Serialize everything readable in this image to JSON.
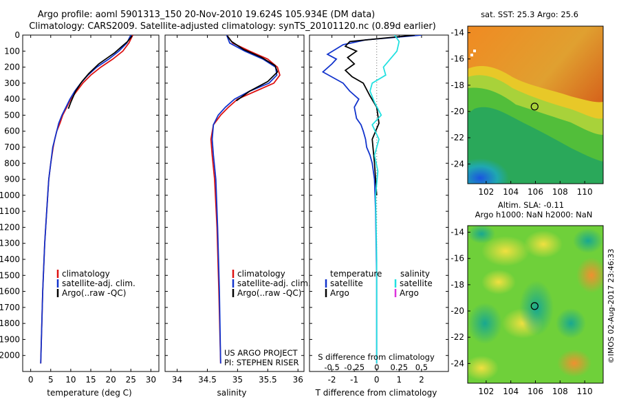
{
  "header": {
    "line1": "Argo profile: aoml 5901313_150 20-Nov-2010 19.624S 105.934E (DM data)",
    "line2": "Climatology: CARS2009. Satellite-adjusted climatology: synTS_20101120.nc (0.89d earlier)"
  },
  "colors": {
    "climatology": "#dd1111",
    "satellite": "#1133cc",
    "argo": "#000000",
    "s_satellite": "#22e0e0",
    "s_argo": "#dd33dd"
  },
  "chart_data": [
    {
      "id": "temperature",
      "type": "line",
      "xlabel": "temperature (deg C)",
      "ylabel": "depth",
      "xlim": [
        -2,
        32
      ],
      "ylim": [
        2100,
        0
      ],
      "xticks": [
        0,
        5,
        10,
        15,
        20,
        25,
        30
      ],
      "yticks": [
        0,
        100,
        200,
        300,
        400,
        500,
        600,
        700,
        800,
        900,
        1000,
        1100,
        1200,
        1300,
        1400,
        1500,
        1600,
        1700,
        1800,
        1900,
        2000
      ],
      "legend": [
        "climatology",
        "satellite-adj. clim.",
        "Argo(..raw -QC)"
      ],
      "series": [
        {
          "name": "climatology",
          "x": [
            25.5,
            24.5,
            23,
            20.5,
            17.5,
            15,
            13,
            11.5,
            10,
            9,
            8,
            7.3,
            6.5,
            6,
            5.6,
            5,
            4.5,
            4,
            3.5,
            3,
            2.5
          ],
          "y": [
            0,
            50,
            100,
            150,
            200,
            250,
            300,
            350,
            400,
            450,
            500,
            550,
            600,
            650,
            700,
            800,
            900,
            1100,
            1300,
            1600,
            2050
          ]
        },
        {
          "name": "satellite-adj. clim.",
          "x": [
            25,
            24,
            22,
            19.5,
            16.5,
            14.3,
            12.5,
            11,
            9.8,
            8.8,
            7.8,
            7,
            6.5,
            6,
            5.5,
            5,
            4.5,
            4,
            3.5,
            3,
            2.5
          ],
          "y": [
            0,
            50,
            100,
            150,
            200,
            250,
            300,
            350,
            400,
            450,
            500,
            550,
            600,
            650,
            700,
            800,
            900,
            1100,
            1300,
            1600,
            2050
          ]
        },
        {
          "name": "Argo(..raw -QC)",
          "x": [
            25.3,
            24.2,
            22.8,
            21,
            17,
            14.5,
            12.8,
            11.2,
            10,
            9.4
          ],
          "y": [
            5,
            40,
            70,
            110,
            180,
            240,
            290,
            350,
            420,
            460
          ]
        }
      ]
    },
    {
      "id": "salinity",
      "type": "line",
      "xlabel": "salinity",
      "ylabel": "depth",
      "xlim": [
        33.8,
        36.1
      ],
      "ylim": [
        2100,
        0
      ],
      "xticks": [
        34,
        34.5,
        35,
        35.5,
        36
      ],
      "legend": [
        "climatology",
        "satellite-adj. clim.",
        "Argo(..raw -QC)"
      ],
      "annotation": [
        "US ARGO PROJECT",
        "PI: STEPHEN RISER"
      ],
      "series": [
        {
          "name": "climatology",
          "x": [
            34.82,
            34.92,
            35.2,
            35.5,
            35.66,
            35.7,
            35.6,
            35.3,
            35.0,
            34.85,
            34.72,
            34.6,
            34.56,
            34.58,
            34.62,
            34.66,
            34.69,
            34.72
          ],
          "y": [
            0,
            50,
            100,
            150,
            200,
            250,
            300,
            350,
            400,
            450,
            500,
            560,
            650,
            750,
            900,
            1200,
            1600,
            2050
          ]
        },
        {
          "name": "satellite-adj. clim.",
          "x": [
            34.82,
            34.87,
            35.12,
            35.42,
            35.63,
            35.65,
            35.52,
            35.2,
            34.95,
            34.8,
            34.68,
            34.6,
            34.58,
            34.6,
            34.64,
            34.67,
            34.7,
            34.72
          ],
          "y": [
            0,
            50,
            100,
            150,
            200,
            250,
            300,
            350,
            400,
            450,
            500,
            560,
            650,
            750,
            900,
            1200,
            1600,
            2050
          ]
        },
        {
          "name": "Argo(..raw -QC)",
          "x": [
            34.83,
            34.9,
            35.1,
            35.4,
            35.62,
            35.66,
            35.5,
            35.2,
            34.98
          ],
          "y": [
            5,
            40,
            90,
            140,
            190,
            230,
            290,
            350,
            410
          ]
        }
      ]
    },
    {
      "id": "difference",
      "type": "line",
      "xlabel": "T difference from climatology",
      "xlabel2": "S difference from climatology",
      "ylabel": "depth",
      "xlim": [
        -3,
        3.2
      ],
      "ylim": [
        2100,
        0
      ],
      "xticks": [
        -2,
        -1,
        0,
        1,
        2
      ],
      "sticks_label": [
        "-0.5",
        "-0.25",
        "0",
        "0.25",
        "0.5"
      ],
      "sticks_pos": [
        -2,
        -1,
        0,
        1,
        2
      ],
      "legend_t": {
        "title": "temperature",
        "items": [
          "satellite",
          "Argo"
        ]
      },
      "legend_s": {
        "title": "salinity",
        "items": [
          "satellite",
          "Argo"
        ]
      },
      "series": [
        {
          "name": "T satellite",
          "x": [
            2,
            -0.5,
            -1.5,
            -2.2,
            -1.8,
            -2,
            -2.4,
            -1.5,
            -1.2,
            -0.8,
            -1.0,
            -0.9,
            -0.7,
            -0.6,
            -0.5,
            -0.45,
            -0.3,
            -0.2,
            -0.1,
            -0.05,
            0,
            0
          ],
          "y": [
            0,
            30,
            60,
            120,
            150,
            180,
            230,
            300,
            350,
            400,
            450,
            520,
            560,
            600,
            650,
            700,
            750,
            800,
            900,
            1100,
            1500,
            2050
          ]
        },
        {
          "name": "T Argo",
          "x": [
            1.7,
            -1.2,
            -1.4,
            -0.9,
            -1.3,
            -1.0,
            -1.4,
            -1.1,
            -0.6,
            -0.3,
            0,
            0.1,
            -0.2,
            -0.1,
            0
          ],
          "y": [
            0,
            40,
            70,
            100,
            140,
            180,
            220,
            260,
            300,
            380,
            450,
            550,
            650,
            800,
            1000
          ]
        },
        {
          "name": "S satellite",
          "x": [
            0.8,
            1.0,
            0.9,
            0.6,
            0.3,
            0.4,
            -0.2,
            -0.3,
            -0.1,
            0.2,
            -0.2,
            0.1,
            -0.1,
            0.05,
            -0.05,
            0,
            0
          ],
          "y": [
            0,
            40,
            100,
            150,
            200,
            250,
            300,
            350,
            420,
            500,
            560,
            650,
            750,
            850,
            1000,
            1400,
            2050
          ]
        }
      ]
    },
    {
      "id": "sst-map",
      "type": "heatmap",
      "title": "sat. SST: 25.3  Argo: 25.6",
      "xlim": [
        100.5,
        111.5
      ],
      "ylim": [
        -25.5,
        -13.5
      ],
      "xticks": [
        102,
        104,
        106,
        108,
        110
      ],
      "yticks": [
        -14,
        -16,
        -18,
        -20,
        -22,
        -24
      ],
      "marker": {
        "lon": 105.934,
        "lat": -19.624
      }
    },
    {
      "id": "sla-map",
      "type": "heatmap",
      "title": "Altim. SLA: -0.11",
      "subtitle": "Argo h1000: NaN h2000: NaN",
      "xlim": [
        100.5,
        111.5
      ],
      "ylim": [
        -25.5,
        -13.5
      ],
      "xticks": [
        102,
        104,
        106,
        108,
        110
      ],
      "yticks": [
        -14,
        -16,
        -18,
        -20,
        -22,
        -24
      ],
      "marker": {
        "lon": 105.934,
        "lat": -19.624
      }
    }
  ],
  "footer": {
    "credit": "©IMOS 02-Aug-2017 23:46:33"
  }
}
